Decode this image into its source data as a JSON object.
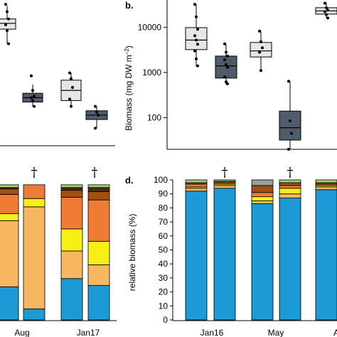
{
  "panels": {
    "b": "b.",
    "d": "d."
  },
  "colors": {
    "box_light": "#e6e6e6",
    "box_dark": "#505b6c",
    "blue": "#1b9ad6",
    "light_orange": "#f7b760",
    "yellow": "#f7ef15",
    "orange": "#f07b35",
    "brown": "#a24f12",
    "dark_brown": "#4a2d10",
    "light_green": "#9ed17a",
    "grey": "#9e9e9e"
  },
  "chart_data": [
    {
      "id": "a",
      "type": "box",
      "note": "partially visible panel (cropped left)",
      "boxes": [
        {
          "style": "light",
          "q1": 0.8,
          "median": 0.84,
          "q3": 0.87,
          "whisker_low": 0.7,
          "whisker_high": 0.96,
          "points": [
            0.97,
            0.92,
            0.87,
            0.83,
            0.79,
            0.7
          ]
        },
        {
          "style": "dark",
          "q1": 0.3,
          "median": 0.33,
          "q3": 0.36,
          "whisker_low": 0.27,
          "whisker_high": 0.42,
          "points": [
            0.48,
            0.38,
            0.34,
            0.33,
            0.31,
            0.27
          ]
        },
        {
          "style": "light",
          "q1": 0.31,
          "median": 0.38,
          "q3": 0.45,
          "whisker_low": 0.27,
          "whisker_high": 0.5,
          "points": [
            0.5,
            0.46,
            0.4,
            0.32,
            0.27
          ]
        },
        {
          "style": "dark",
          "q1": 0.18,
          "median": 0.21,
          "q3": 0.24,
          "whisker_low": 0.12,
          "whisker_high": 0.27,
          "points": [
            0.27,
            0.23,
            0.21,
            0.12
          ]
        }
      ]
    },
    {
      "id": "b",
      "type": "box",
      "yscale": "log",
      "ylim": [
        20,
        40000
      ],
      "ylabel": "Biomass (mg DW m",
      "ylabel_sup": "−2",
      "ylabel_close": ")",
      "yticks": [
        100,
        1000,
        10000
      ],
      "ytick_labels": [
        "100",
        "1000",
        "10000"
      ],
      "boxes": [
        {
          "style": "light",
          "q1": 3200,
          "median": 5200,
          "q3": 9800,
          "whisker_low": 1350,
          "whisker_high": 32000,
          "points": [
            32000,
            17000,
            9000,
            6500,
            5200,
            4200,
            3000,
            2000,
            1400
          ]
        },
        {
          "style": "dark",
          "q1": 750,
          "median": 1400,
          "q3": 2300,
          "whisker_low": 540,
          "whisker_high": 4200,
          "points": [
            4300,
            2800,
            2300,
            1900,
            1500,
            1300,
            800,
            620,
            560
          ]
        },
        {
          "style": "light",
          "q1": 2200,
          "median": 3000,
          "q3": 4600,
          "whisker_low": 1050,
          "whisker_high": 8200,
          "points": [
            8200,
            4800,
            3500,
            2800,
            1100
          ]
        },
        {
          "style": "dark",
          "q1": 32,
          "median": 60,
          "q3": 140,
          "whisker_low": 20,
          "whisker_high": 640,
          "points": [
            640,
            85,
            45,
            20
          ]
        },
        {
          "style": "light",
          "q1": 19500,
          "median": 23000,
          "q3": 27000,
          "whisker_low": 16000,
          "whisker_high": 35000,
          "points": [
            34000,
            27000,
            24000,
            22000,
            19000,
            16000
          ]
        }
      ]
    },
    {
      "id": "c",
      "type": "stacked_bar",
      "note": "partially visible panel (cropped left)",
      "x_tick_labels": [
        "Aug",
        "Jan17"
      ],
      "daggers": [
        "†",
        "†"
      ],
      "stack_order": [
        "blue",
        "light_orange",
        "yellow",
        "orange",
        "brown",
        "dark_brown",
        "light_green"
      ],
      "bars": [
        {
          "values": {
            "blue": 24,
            "light_orange": 48,
            "yellow": 5,
            "orange": 14,
            "brown": 4,
            "dark_brown": 1,
            "light_green": 2
          }
        },
        {
          "values": {
            "blue": 8,
            "light_orange": 74,
            "yellow": 6,
            "orange": 10,
            "brown": 0,
            "dark_brown": 0,
            "light_green": 0
          }
        },
        {
          "values": {
            "blue": 30,
            "light_orange": 20,
            "yellow": 16,
            "orange": 23,
            "brown": 5,
            "dark_brown": 2,
            "light_green": 2
          }
        },
        {
          "values": {
            "blue": 25,
            "light_orange": 15,
            "yellow": 17,
            "orange": 30,
            "brown": 6,
            "dark_brown": 3,
            "light_green": 2
          }
        }
      ],
      "partial_bar": {
        "values": {
          "blue": 0,
          "light_orange": 0,
          "yellow": 0,
          "orange": 0,
          "brown": 0,
          "dark_brown": 0,
          "light_green": 0
        }
      }
    },
    {
      "id": "d",
      "type": "stacked_bar",
      "ylabel": "relative biomass (%)",
      "ylim": [
        0,
        100
      ],
      "yticks": [
        0,
        10,
        20,
        30,
        40,
        50,
        60,
        70,
        80,
        90,
        100
      ],
      "x_tick_labels": [
        "Jan16",
        "May"
      ],
      "daggers": [
        "†",
        "†"
      ],
      "stack_order": [
        "blue",
        "light_orange",
        "yellow",
        "orange",
        "brown",
        "dark_brown",
        "light_green",
        "grey"
      ],
      "bars": [
        {
          "values": {
            "blue": 92,
            "light_orange": 2,
            "yellow": 1,
            "orange": 2,
            "brown": 1,
            "dark_brown": 0,
            "light_green": 2,
            "grey": 0
          }
        },
        {
          "values": {
            "blue": 94,
            "light_orange": 2,
            "yellow": 1,
            "orange": 1,
            "brown": 1,
            "dark_brown": 0,
            "light_green": 1,
            "grey": 0
          }
        },
        {
          "values": {
            "blue": 83,
            "light_orange": 2,
            "yellow": 3,
            "orange": 3,
            "brown": 5,
            "dark_brown": 0,
            "light_green": 0,
            "grey": 4
          }
        },
        {
          "values": {
            "blue": 87,
            "light_orange": 3,
            "yellow": 4,
            "orange": 2,
            "brown": 2,
            "dark_brown": 0,
            "light_green": 2,
            "grey": 0
          }
        },
        {
          "values": {
            "blue": 93,
            "light_orange": 2,
            "yellow": 1,
            "orange": 1,
            "brown": 1,
            "dark_brown": 0,
            "light_green": 2,
            "grey": 0
          }
        }
      ],
      "partial_tick_label": "A"
    }
  ]
}
